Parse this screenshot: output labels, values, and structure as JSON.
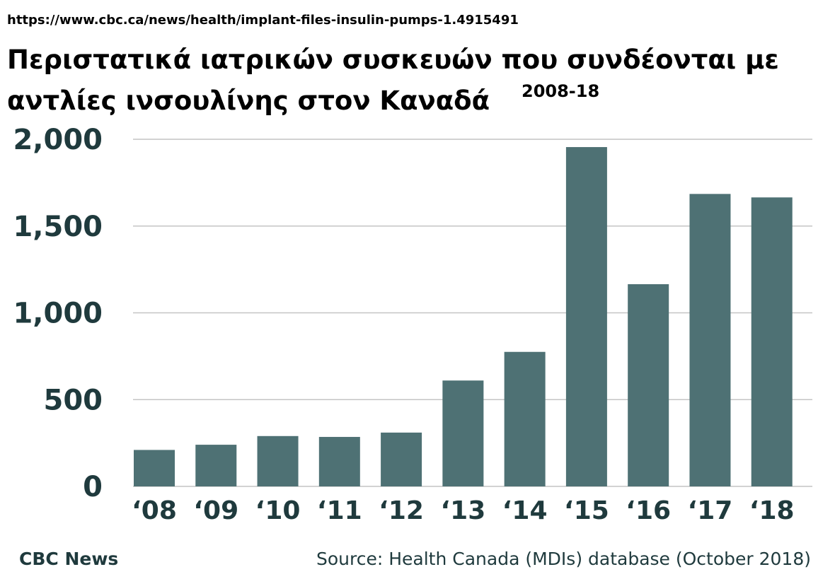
{
  "header": {
    "url": "https://www.cbc.ca/news/health/implant-files-insulin-pumps-1.4915491"
  },
  "footer": {
    "brand": "CBC News",
    "source": "Source: Health Canada (MDIs) database (October 2018)"
  },
  "colors": {
    "bar": "#4e7174",
    "grid": "#c4c4c4",
    "axis_text": "#1f3a3d"
  },
  "chart_data": {
    "type": "bar",
    "title": "Περιστατικά ιατρικών συσκευών που συνδέονται με αντλίες ινσουλίνης στον Καναδά",
    "subtitle": "2008-18",
    "xlabel": "",
    "ylabel": "",
    "categories": [
      "‘08",
      "‘09",
      "‘10",
      "‘11",
      "‘12",
      "‘13",
      "‘14",
      "‘15",
      "‘16",
      "‘17",
      "‘18"
    ],
    "values": [
      210,
      240,
      290,
      285,
      310,
      610,
      775,
      1955,
      1165,
      1685,
      1665
    ],
    "ylim": [
      0,
      2000
    ],
    "yticks": [
      0,
      500,
      1000,
      1500,
      2000
    ],
    "ytick_labels": [
      "0",
      "500",
      "1,000",
      "1,500",
      "2,000"
    ],
    "grid": true,
    "legend": "none"
  }
}
